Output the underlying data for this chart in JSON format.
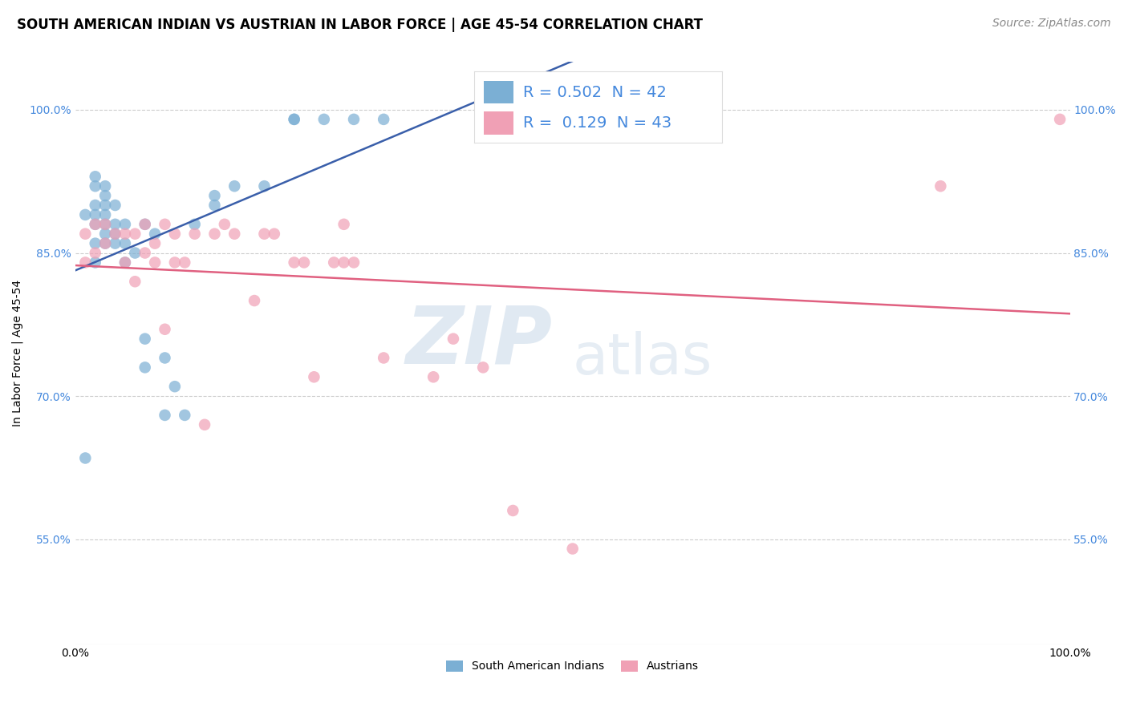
{
  "title": "SOUTH AMERICAN INDIAN VS AUSTRIAN IN LABOR FORCE | AGE 45-54 CORRELATION CHART",
  "source": "Source: ZipAtlas.com",
  "ylabel": "In Labor Force | Age 45-54",
  "xlim": [
    0,
    1.0
  ],
  "ylim": [
    0.44,
    1.05
  ],
  "yticks": [
    0.55,
    0.7,
    0.85,
    1.0
  ],
  "ytick_labels": [
    "55.0%",
    "70.0%",
    "85.0%",
    "100.0%"
  ],
  "xticks": [
    0.0,
    1.0
  ],
  "xtick_labels": [
    "0.0%",
    "100.0%"
  ],
  "blue_r": 0.502,
  "blue_n": 42,
  "pink_r": 0.129,
  "pink_n": 43,
  "blue_label": "South American Indians",
  "pink_label": "Austrians",
  "background_color": "#ffffff",
  "blue_color": "#7bafd4",
  "pink_color": "#f0a0b5",
  "blue_line_color": "#3a5faa",
  "pink_line_color": "#e06080",
  "legend_r_color": "#4488dd",
  "legend_n_color": "#33cc33",
  "blue_x": [
    0.01,
    0.01,
    0.02,
    0.02,
    0.02,
    0.02,
    0.02,
    0.02,
    0.02,
    0.03,
    0.03,
    0.03,
    0.03,
    0.03,
    0.03,
    0.03,
    0.04,
    0.04,
    0.04,
    0.04,
    0.05,
    0.05,
    0.05,
    0.06,
    0.07,
    0.07,
    0.07,
    0.08,
    0.09,
    0.09,
    0.1,
    0.11,
    0.12,
    0.14,
    0.14,
    0.16,
    0.19,
    0.22,
    0.22,
    0.25,
    0.28,
    0.31
  ],
  "blue_y": [
    0.635,
    0.89,
    0.84,
    0.86,
    0.88,
    0.89,
    0.9,
    0.92,
    0.93,
    0.86,
    0.87,
    0.88,
    0.89,
    0.9,
    0.91,
    0.92,
    0.86,
    0.87,
    0.88,
    0.9,
    0.84,
    0.86,
    0.88,
    0.85,
    0.73,
    0.76,
    0.88,
    0.87,
    0.68,
    0.74,
    0.71,
    0.68,
    0.88,
    0.9,
    0.91,
    0.92,
    0.92,
    0.99,
    0.99,
    0.99,
    0.99,
    0.99
  ],
  "pink_x": [
    0.01,
    0.01,
    0.02,
    0.02,
    0.03,
    0.03,
    0.04,
    0.05,
    0.05,
    0.06,
    0.06,
    0.07,
    0.07,
    0.08,
    0.08,
    0.09,
    0.09,
    0.1,
    0.1,
    0.11,
    0.12,
    0.13,
    0.14,
    0.15,
    0.16,
    0.18,
    0.19,
    0.2,
    0.22,
    0.23,
    0.24,
    0.26,
    0.27,
    0.27,
    0.28,
    0.31,
    0.36,
    0.38,
    0.41,
    0.44,
    0.5,
    0.87,
    0.99
  ],
  "pink_y": [
    0.84,
    0.87,
    0.85,
    0.88,
    0.86,
    0.88,
    0.87,
    0.84,
    0.87,
    0.82,
    0.87,
    0.85,
    0.88,
    0.84,
    0.86,
    0.77,
    0.88,
    0.84,
    0.87,
    0.84,
    0.87,
    0.67,
    0.87,
    0.88,
    0.87,
    0.8,
    0.87,
    0.87,
    0.84,
    0.84,
    0.72,
    0.84,
    0.84,
    0.88,
    0.84,
    0.74,
    0.72,
    0.76,
    0.73,
    0.58,
    0.54,
    0.92,
    0.99
  ],
  "watermark_zip": "ZIP",
  "watermark_atlas": "atlas",
  "title_fontsize": 12,
  "axis_label_fontsize": 10,
  "tick_fontsize": 10,
  "legend_fontsize": 13,
  "source_fontsize": 10
}
